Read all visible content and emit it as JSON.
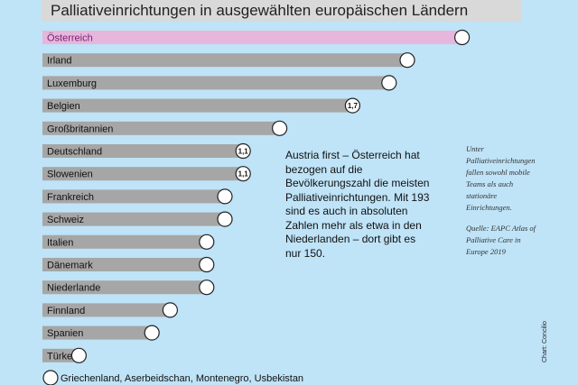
{
  "chart_data": {
    "type": "bar",
    "title": "Palliativeinrichtungen in ausgewählten europäischen Ländern",
    "categories": [
      "Österreich",
      "Irland",
      "Luxemburg",
      "Belgien",
      "Großbritannien",
      "Deutschland",
      "Slowenien",
      "Frankreich",
      "Schweiz",
      "Italien",
      "Dänemark",
      "Niederlande",
      "Finnland",
      "Spanien",
      "Türkei"
    ],
    "values": [
      23,
      20,
      19,
      17,
      13,
      11,
      11,
      10,
      10,
      9,
      9,
      9,
      7,
      6,
      2
    ],
    "marker_labels": [
      "",
      "",
      "",
      "1,7",
      "",
      "1,1",
      "1,1",
      "",
      "",
      "",
      "",
      "",
      "",
      "",
      ""
    ],
    "other": {
      "label": "Griechenland, Aserbeidschan, Montenegro, Usbekistan",
      "value": 0
    },
    "highlight_category": "Österreich",
    "colors": {
      "bar": "#a6a6a6",
      "highlight_bar": "#e6b6dc",
      "highlight_text": "#7a1f6e",
      "marker_fill": "#ffffff",
      "marker_stroke": "#222222",
      "background": "#bfe3f7"
    }
  },
  "annotation": "Austria first – Österreich hat bezogen auf die Bevölkerungszahl die meisten Palliativeinrichtungen. Mit 193 sind es auch in absoluten Zahlen mehr als etwa in den Niederlanden – dort gibt es nur 150.",
  "side_note": {
    "text": "Unter Palliativeinrichtungen fallen sowohl mobile Teams als auch stationäre Einrichtungen.",
    "source": "Quelle: EAPC Atlas of Palliative Care in Europe 2019"
  },
  "credit": "Chart: Concilio"
}
